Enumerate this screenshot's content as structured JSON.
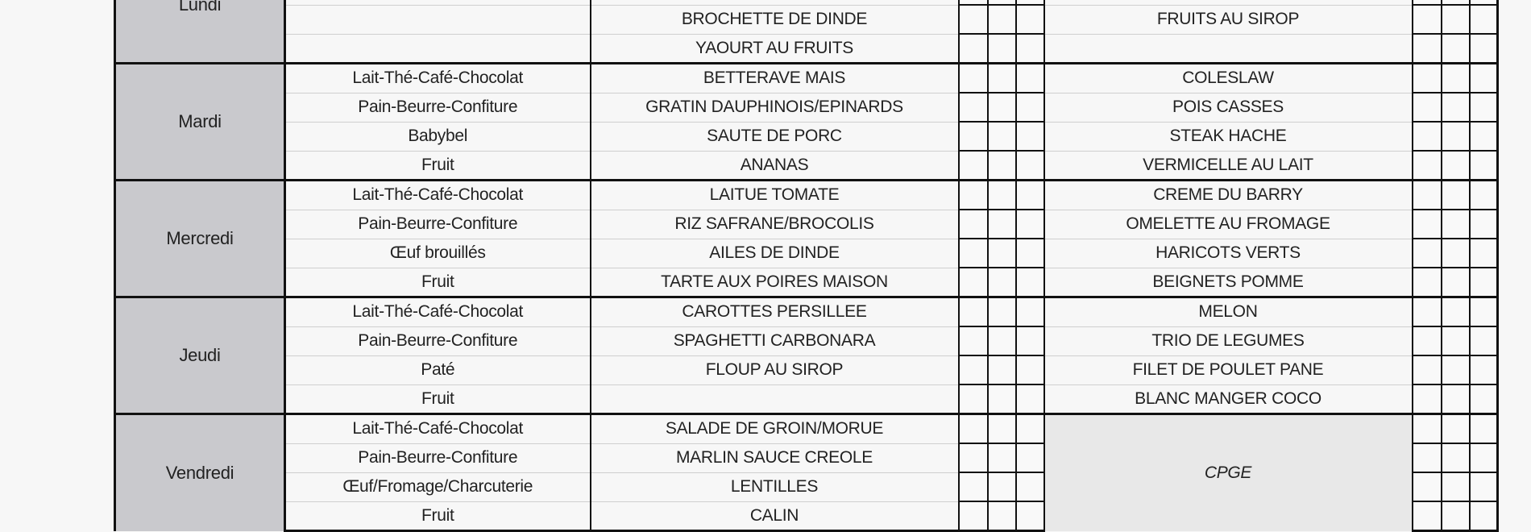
{
  "days": [
    {
      "name": "Lundi",
      "breakfast": [
        "",
        "",
        "",
        ""
      ],
      "lunch": [
        "",
        "",
        "BROCHETTE DE DINDE",
        "YAOURT AU FRUITS"
      ],
      "dinner": [
        "",
        "",
        "FRUITS AU SIROP",
        ""
      ]
    },
    {
      "name": "Mardi",
      "breakfast": [
        "Lait-Thé-Café-Chocolat",
        "Pain-Beurre-Confiture",
        "Babybel",
        "Fruit"
      ],
      "lunch": [
        "BETTERAVE MAIS",
        "GRATIN DAUPHINOIS/EPINARDS",
        "SAUTE DE PORC",
        "ANANAS"
      ],
      "dinner": [
        "COLESLAW",
        "POIS CASSES",
        "STEAK HACHE",
        "VERMICELLE AU LAIT"
      ]
    },
    {
      "name": "Mercredi",
      "breakfast": [
        "Lait-Thé-Café-Chocolat",
        "Pain-Beurre-Confiture",
        "Œuf brouillés",
        "Fruit"
      ],
      "lunch": [
        "LAITUE TOMATE",
        "RIZ SAFRANE/BROCOLIS",
        "AILES DE DINDE",
        "TARTE AUX POIRES MAISON"
      ],
      "dinner": [
        "CREME DU BARRY",
        "OMELETTE AU FROMAGE",
        "HARICOTS VERTS",
        "BEIGNETS POMME"
      ]
    },
    {
      "name": "Jeudi",
      "breakfast": [
        "Lait-Thé-Café-Chocolat",
        "Pain-Beurre-Confiture",
        "Paté",
        "Fruit"
      ],
      "lunch": [
        "CAROTTES PERSILLEE",
        "SPAGHETTI CARBONARA",
        "FLOUP AU SIROP",
        ""
      ],
      "dinner": [
        "MELON",
        "TRIO DE LEGUMES",
        "FILET DE POULET PANE",
        "BLANC MANGER COCO"
      ]
    },
    {
      "name": "Vendredi",
      "breakfast": [
        "Lait-Thé-Café-Chocolat",
        "Pain-Beurre-Confiture",
        "Œuf/Fromage/Charcuterie",
        "Fruit"
      ],
      "lunch": [
        "SALADE DE GROIN/MORUE",
        "MARLIN SAUCE CREOLE",
        "LENTILLES",
        "CALIN"
      ],
      "dinner_merged": "CPGE"
    }
  ]
}
